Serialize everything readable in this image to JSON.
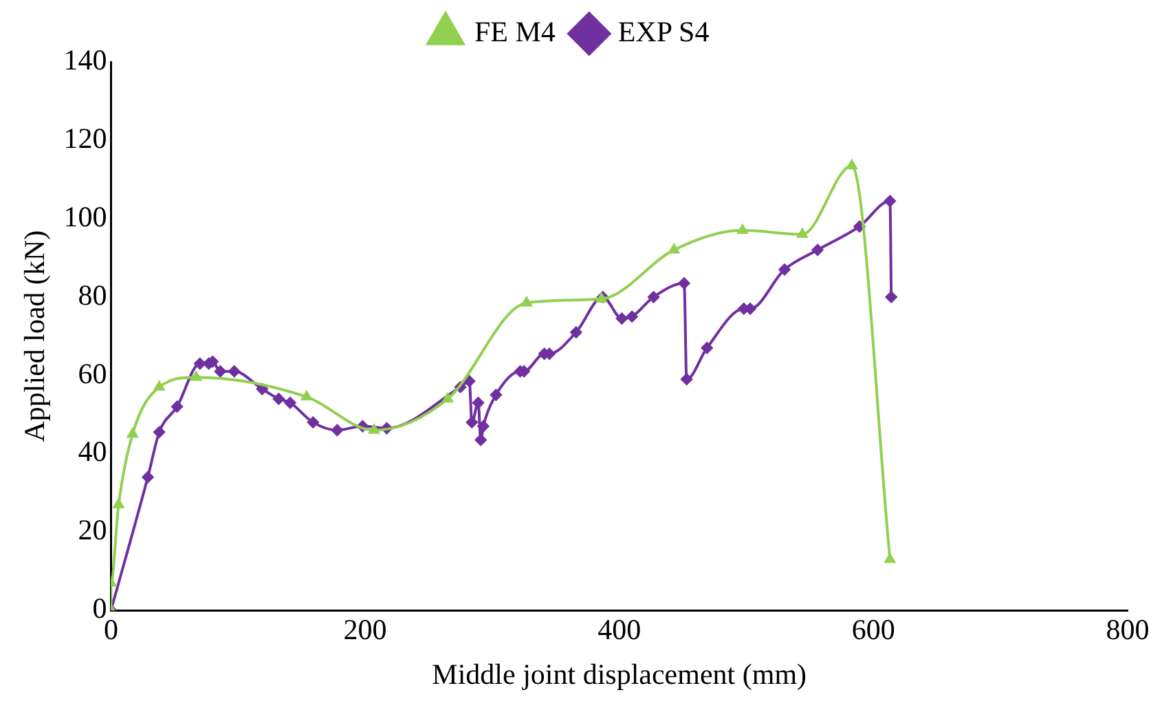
{
  "chart_data": {
    "type": "line",
    "xlabel": "Middle joint displacement (mm)",
    "ylabel": "Applied load (kN)",
    "xlim": [
      0,
      800
    ],
    "xticks": [
      0,
      200,
      400,
      600,
      800
    ],
    "ylim": [
      0,
      140
    ],
    "yticks": [
      0,
      20,
      40,
      60,
      80,
      100,
      120,
      140
    ],
    "grid": false,
    "legend": "top",
    "line_style": "solid",
    "series": [
      {
        "name": "EXP S4",
        "color": "#7030a0",
        "marker": "diamond",
        "x": [
          0,
          29,
          38,
          52,
          70,
          77,
          80,
          86,
          97,
          119,
          132,
          141,
          159,
          178,
          198,
          217,
          275,
          282,
          284,
          289,
          291,
          293,
          303,
          322,
          325,
          341,
          345,
          366,
          387,
          402,
          410,
          427,
          451,
          453,
          469,
          498,
          503,
          530,
          556,
          589,
          613,
          614
        ],
        "values": [
          0,
          34,
          45.5,
          52,
          63,
          63,
          63.5,
          61,
          61,
          56.5,
          54,
          53,
          48,
          46,
          47,
          46.5,
          57,
          58.5,
          48,
          53,
          43.5,
          47,
          55,
          61,
          61,
          65.5,
          65.5,
          71,
          80,
          74.5,
          75,
          80,
          83.5,
          59,
          67,
          77,
          77,
          87,
          92,
          98,
          104.5,
          80
        ]
      },
      {
        "name": "FE M4",
        "color": "#92d050",
        "marker": "triangle",
        "x": [
          0,
          0,
          6,
          17,
          38,
          67,
          154,
          207,
          265,
          327,
          386,
          443,
          497,
          544,
          583,
          613
        ],
        "values": [
          0,
          7,
          27,
          45,
          57,
          59.5,
          54.5,
          46,
          54,
          78.5,
          79.5,
          92,
          97,
          96,
          113.5,
          13
        ]
      }
    ]
  }
}
